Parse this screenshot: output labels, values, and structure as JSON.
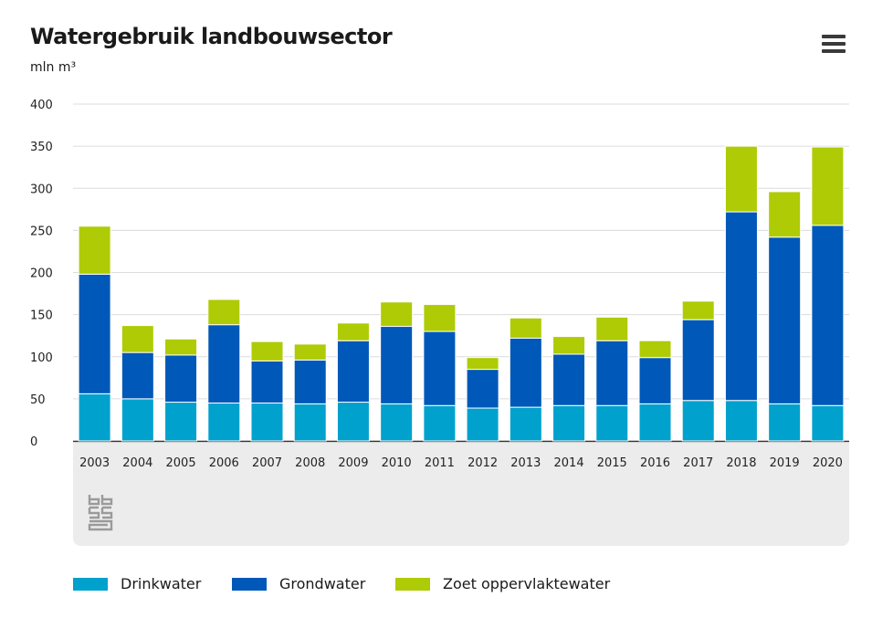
{
  "header": {
    "title": "Watergebruik landbouwsector",
    "unit": "mln m³"
  },
  "colors": {
    "drinkwater": "#00a1cd",
    "grondwater": "#0058b8",
    "oppervlaktewater": "#afcb05",
    "grid": "#dcdcdc",
    "axis": "#333333"
  },
  "chart_data": {
    "type": "bar",
    "stacked": true,
    "title": "Watergebruik landbouwsector",
    "ylabel": "mln m³",
    "ylim": [
      0,
      400
    ],
    "yticks": [
      0,
      50,
      100,
      150,
      200,
      250,
      300,
      350,
      400
    ],
    "grid": true,
    "legend": "bottom",
    "categories": [
      "2003",
      "2004",
      "2005",
      "2006",
      "2007",
      "2008",
      "2009",
      "2010",
      "2011",
      "2012",
      "2013",
      "2014",
      "2015",
      "2016",
      "2017",
      "2018",
      "2019",
      "2020"
    ],
    "series": [
      {
        "name": "Drinkwater",
        "color": "#00a1cd",
        "values": [
          56,
          50,
          46,
          45,
          45,
          44,
          46,
          44,
          42,
          39,
          40,
          42,
          42,
          44,
          48,
          48,
          44,
          42
        ]
      },
      {
        "name": "Grondwater",
        "color": "#0058b8",
        "values": [
          142,
          55,
          56,
          93,
          50,
          52,
          73,
          92,
          88,
          46,
          82,
          61,
          77,
          55,
          96,
          224,
          198,
          214
        ]
      },
      {
        "name": "Zoet oppervlaktewater",
        "color": "#afcb05",
        "values": [
          57,
          32,
          19,
          30,
          23,
          19,
          21,
          29,
          32,
          14,
          24,
          21,
          28,
          20,
          22,
          78,
          54,
          93
        ]
      }
    ]
  }
}
